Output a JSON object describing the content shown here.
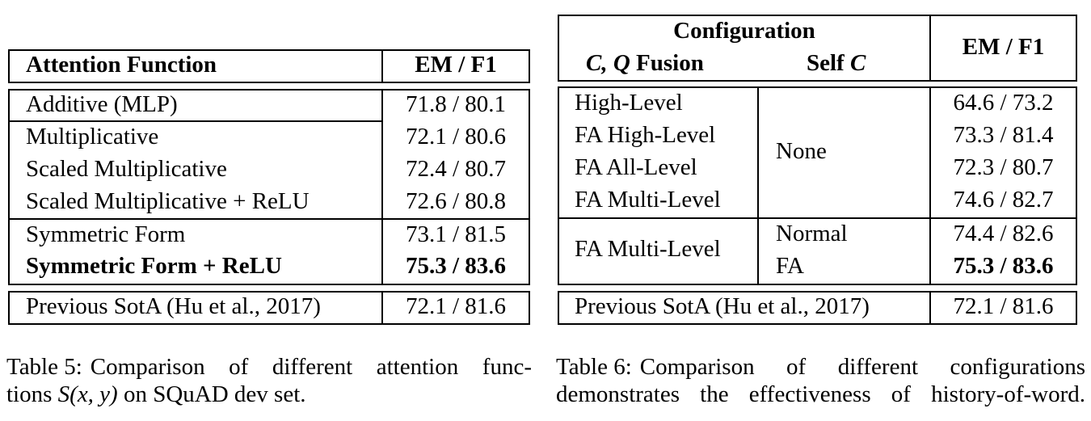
{
  "table5": {
    "header": {
      "attention_function": "Attention Function",
      "emf1": "EM / F1"
    },
    "rows": [
      {
        "name": "Additive (MLP)",
        "score": "71.8 / 80.1",
        "bold": false
      },
      {
        "name": "Multiplicative",
        "score": "72.1 / 80.6",
        "bold": false
      },
      {
        "name": "Scaled Multiplicative",
        "score": "72.4 / 80.7",
        "bold": false
      },
      {
        "name": "Scaled Multiplicative + ReLU",
        "score": "72.6 / 80.8",
        "bold": false
      },
      {
        "name": "Symmetric Form",
        "score": "73.1 / 81.5",
        "bold": false
      },
      {
        "name": "Symmetric Form + ReLU",
        "score": "75.3 / 83.6",
        "bold": true
      }
    ],
    "previous": {
      "name": "Previous SotA (Hu et al., 2017)",
      "score": "72.1 / 81.6"
    },
    "caption_label": "Table 5:",
    "caption_text_1": "Comparison of different attention func-",
    "caption_text_2a": "tions",
    "caption_math": "S(x, y)",
    "caption_text_2b": "on SQuAD dev set."
  },
  "table6": {
    "header": {
      "configuration": "Configuration",
      "cq_fusion_math": "C, Q",
      "cq_fusion_word": "Fusion",
      "self_c_word": "Self",
      "self_c_math": "C",
      "emf1": "EM / F1"
    },
    "group1": {
      "rows": [
        {
          "name": "High-Level",
          "score": "64.6 / 73.2"
        },
        {
          "name": "FA High-Level",
          "score": "73.3 / 81.4"
        },
        {
          "name": "FA All-Level",
          "score": "72.3 / 80.7"
        },
        {
          "name": "FA Multi-Level",
          "score": "74.6 / 82.7"
        }
      ],
      "self_c": "None"
    },
    "group2": {
      "name": "FA Multi-Level",
      "rows": [
        {
          "self_c": "Normal",
          "score": "74.4 / 82.6",
          "bold": false
        },
        {
          "self_c": "FA",
          "score": "75.3 / 83.6",
          "bold": true
        }
      ]
    },
    "previous": {
      "name": "Previous SotA (Hu et al., 2017)",
      "score": "72.1 / 81.6"
    },
    "caption_label": "Table 6:",
    "caption_text_1": "Comparison of different configurations",
    "caption_text_2": "demonstrates the effectiveness of history-of-word."
  }
}
